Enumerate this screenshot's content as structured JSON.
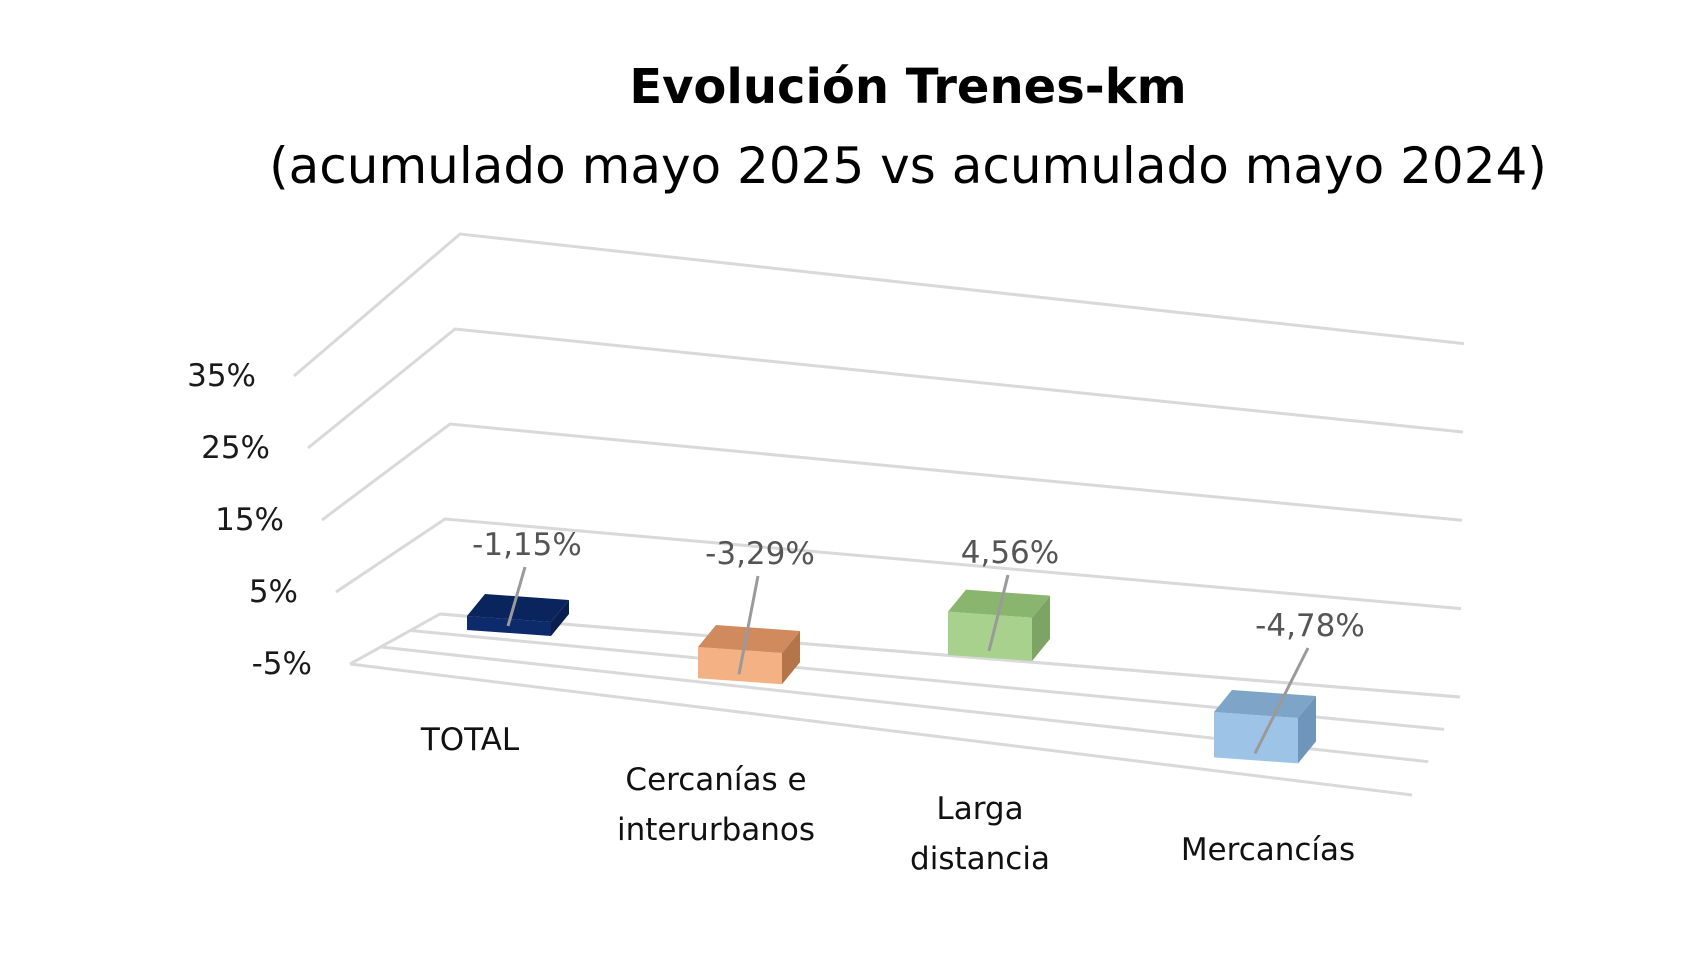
{
  "chart_data": {
    "type": "bar",
    "title": "Evolución Trenes-km",
    "subtitle": "(acumulado mayo 2025 vs acumulado mayo 2024)",
    "categories": [
      "TOTAL",
      "Cercanías e interurbanos",
      "Larga distancia",
      "Mercancías"
    ],
    "category_lines": [
      [
        "TOTAL"
      ],
      [
        "Cercanías e",
        "interurbanos"
      ],
      [
        "Larga",
        "distancia"
      ],
      [
        "Mercancías"
      ]
    ],
    "values": [
      -1.15,
      -3.29,
      4.56,
      -4.78
    ],
    "data_labels": [
      "-1,15%",
      "-3,29%",
      "4,56%",
      "-4,78%"
    ],
    "y_ticks": [
      "35%",
      "25%",
      "15%",
      "5%",
      "-5%"
    ],
    "ylim": [
      -5,
      35
    ],
    "grid": true,
    "colors": [
      "#0d2a6b",
      "#f4b183",
      "#a9d18e",
      "#9dc3e6"
    ],
    "side_colors": [
      "#09204f",
      "#b5754a",
      "#7ea465",
      "#6f95bb"
    ],
    "top_colors": [
      "#0a245d",
      "#d08a5e",
      "#8ab56f",
      "#7ea4c8"
    ]
  }
}
